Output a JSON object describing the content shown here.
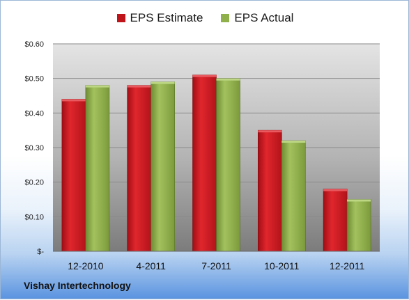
{
  "chart_data": {
    "type": "bar",
    "categories": [
      "12-2010",
      "4-2011",
      "7-2011",
      "10-2011",
      "12-2011"
    ],
    "series": [
      {
        "name": "EPS Estimate",
        "color": "#c0141b",
        "values": [
          0.44,
          0.48,
          0.51,
          0.35,
          0.18
        ]
      },
      {
        "name": "EPS Actual",
        "color": "#8fb04a",
        "values": [
          0.48,
          0.49,
          0.5,
          0.32,
          0.15
        ]
      }
    ],
    "y_ticks": [
      {
        "value": 0.6,
        "label": "$0.60"
      },
      {
        "value": 0.5,
        "label": "$0.50"
      },
      {
        "value": 0.4,
        "label": "$0.40"
      },
      {
        "value": 0.3,
        "label": "$0.30"
      },
      {
        "value": 0.2,
        "label": "$0.20"
      },
      {
        "value": 0.1,
        "label": "$0.10"
      },
      {
        "value": 0.0,
        "label": "$-"
      }
    ],
    "ylim": [
      0,
      0.6
    ],
    "grid": true,
    "legend_position": "top-center"
  },
  "footer": {
    "company": "Vishay Intertechnology"
  }
}
